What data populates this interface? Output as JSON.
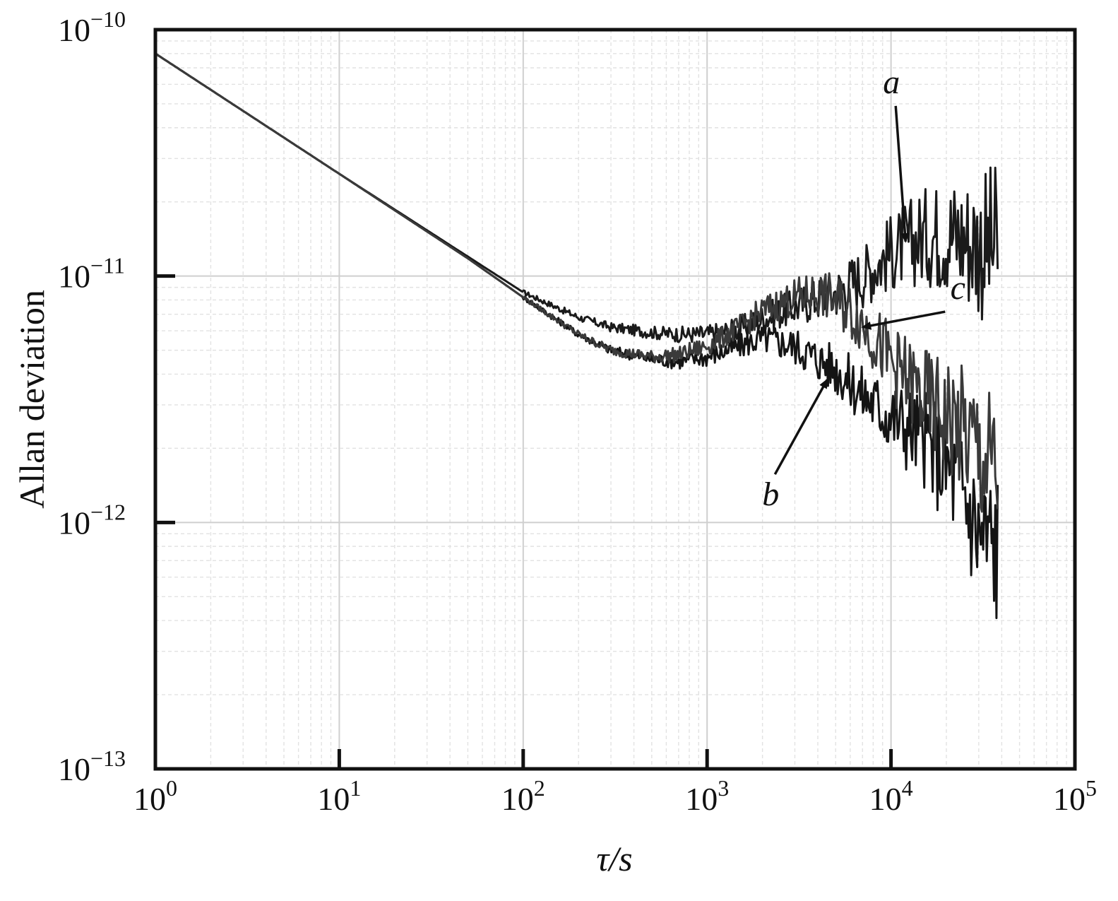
{
  "chart_data": {
    "type": "line",
    "title": "",
    "xlabel": "τ/s",
    "ylabel": "Allan deviation",
    "xscale": "log",
    "yscale": "log",
    "xlim": [
      1,
      100000
    ],
    "ylim": [
      1e-13,
      1e-10
    ],
    "grid": true,
    "x_ticks": [
      {
        "base": "10",
        "exp": "0"
      },
      {
        "base": "10",
        "exp": "1"
      },
      {
        "base": "10",
        "exp": "2"
      },
      {
        "base": "10",
        "exp": "3"
      },
      {
        "base": "10",
        "exp": "4"
      },
      {
        "base": "10",
        "exp": "5"
      }
    ],
    "y_ticks": [
      {
        "base": "10",
        "exp": "−10"
      },
      {
        "base": "10",
        "exp": "−11"
      },
      {
        "base": "10",
        "exp": "−12"
      },
      {
        "base": "10",
        "exp": "−13"
      }
    ],
    "series": [
      {
        "name": "a",
        "x": [
          1,
          10,
          50,
          100,
          200,
          300,
          500,
          700,
          1000,
          1500,
          2000,
          3000,
          5000,
          7000,
          10000,
          15000,
          20000,
          25000,
          30000,
          38000
        ],
        "y": [
          8e-11,
          2.6e-11,
          1.2e-11,
          8.6e-12,
          6.8e-12,
          6.2e-12,
          5.9e-12,
          5.8e-12,
          5.8e-12,
          6.1e-12,
          6.7e-12,
          7.5e-12,
          8.6e-12,
          1e-11,
          1.25e-11,
          1.45e-11,
          1.5e-11,
          1.45e-11,
          1.35e-11,
          1.3e-11
        ]
      },
      {
        "name": "b",
        "x": [
          1,
          10,
          50,
          100,
          200,
          300,
          500,
          700,
          1000,
          1500,
          2000,
          3000,
          5000,
          7000,
          10000,
          15000,
          20000,
          25000,
          30000,
          38000
        ],
        "y": [
          8e-11,
          2.6e-11,
          1.18e-11,
          8.2e-12,
          5.8e-12,
          5e-12,
          4.6e-12,
          4.5e-12,
          4.7e-12,
          5.2e-12,
          5.6e-12,
          5.2e-12,
          4.2e-12,
          3.3e-12,
          2.7e-12,
          2.2e-12,
          1.7e-12,
          1.3e-12,
          9e-13,
          8e-13
        ]
      },
      {
        "name": "c",
        "x": [
          1,
          10,
          50,
          100,
          200,
          300,
          500,
          700,
          1000,
          1500,
          2000,
          3000,
          4000,
          5000,
          7000,
          10000,
          15000,
          20000,
          25000,
          30000,
          38000
        ],
        "y": [
          8e-11,
          2.6e-11,
          1.18e-11,
          8.2e-12,
          5.8e-12,
          5e-12,
          4.7e-12,
          4.8e-12,
          5.2e-12,
          6.2e-12,
          7.2e-12,
          8.2e-12,
          8.5e-12,
          8e-12,
          6.5e-12,
          4.5e-12,
          3.2e-12,
          2.7e-12,
          2.3e-12,
          1.9e-12,
          1.5e-12
        ]
      }
    ],
    "annotations": [
      {
        "text": "a",
        "arrow_to": [
          12000,
          1.38e-11
        ]
      },
      {
        "text": "b",
        "arrow_to": [
          4500,
          3.8e-12
        ]
      },
      {
        "text": "c",
        "arrow_to": [
          7000,
          6.2e-12
        ]
      }
    ]
  }
}
